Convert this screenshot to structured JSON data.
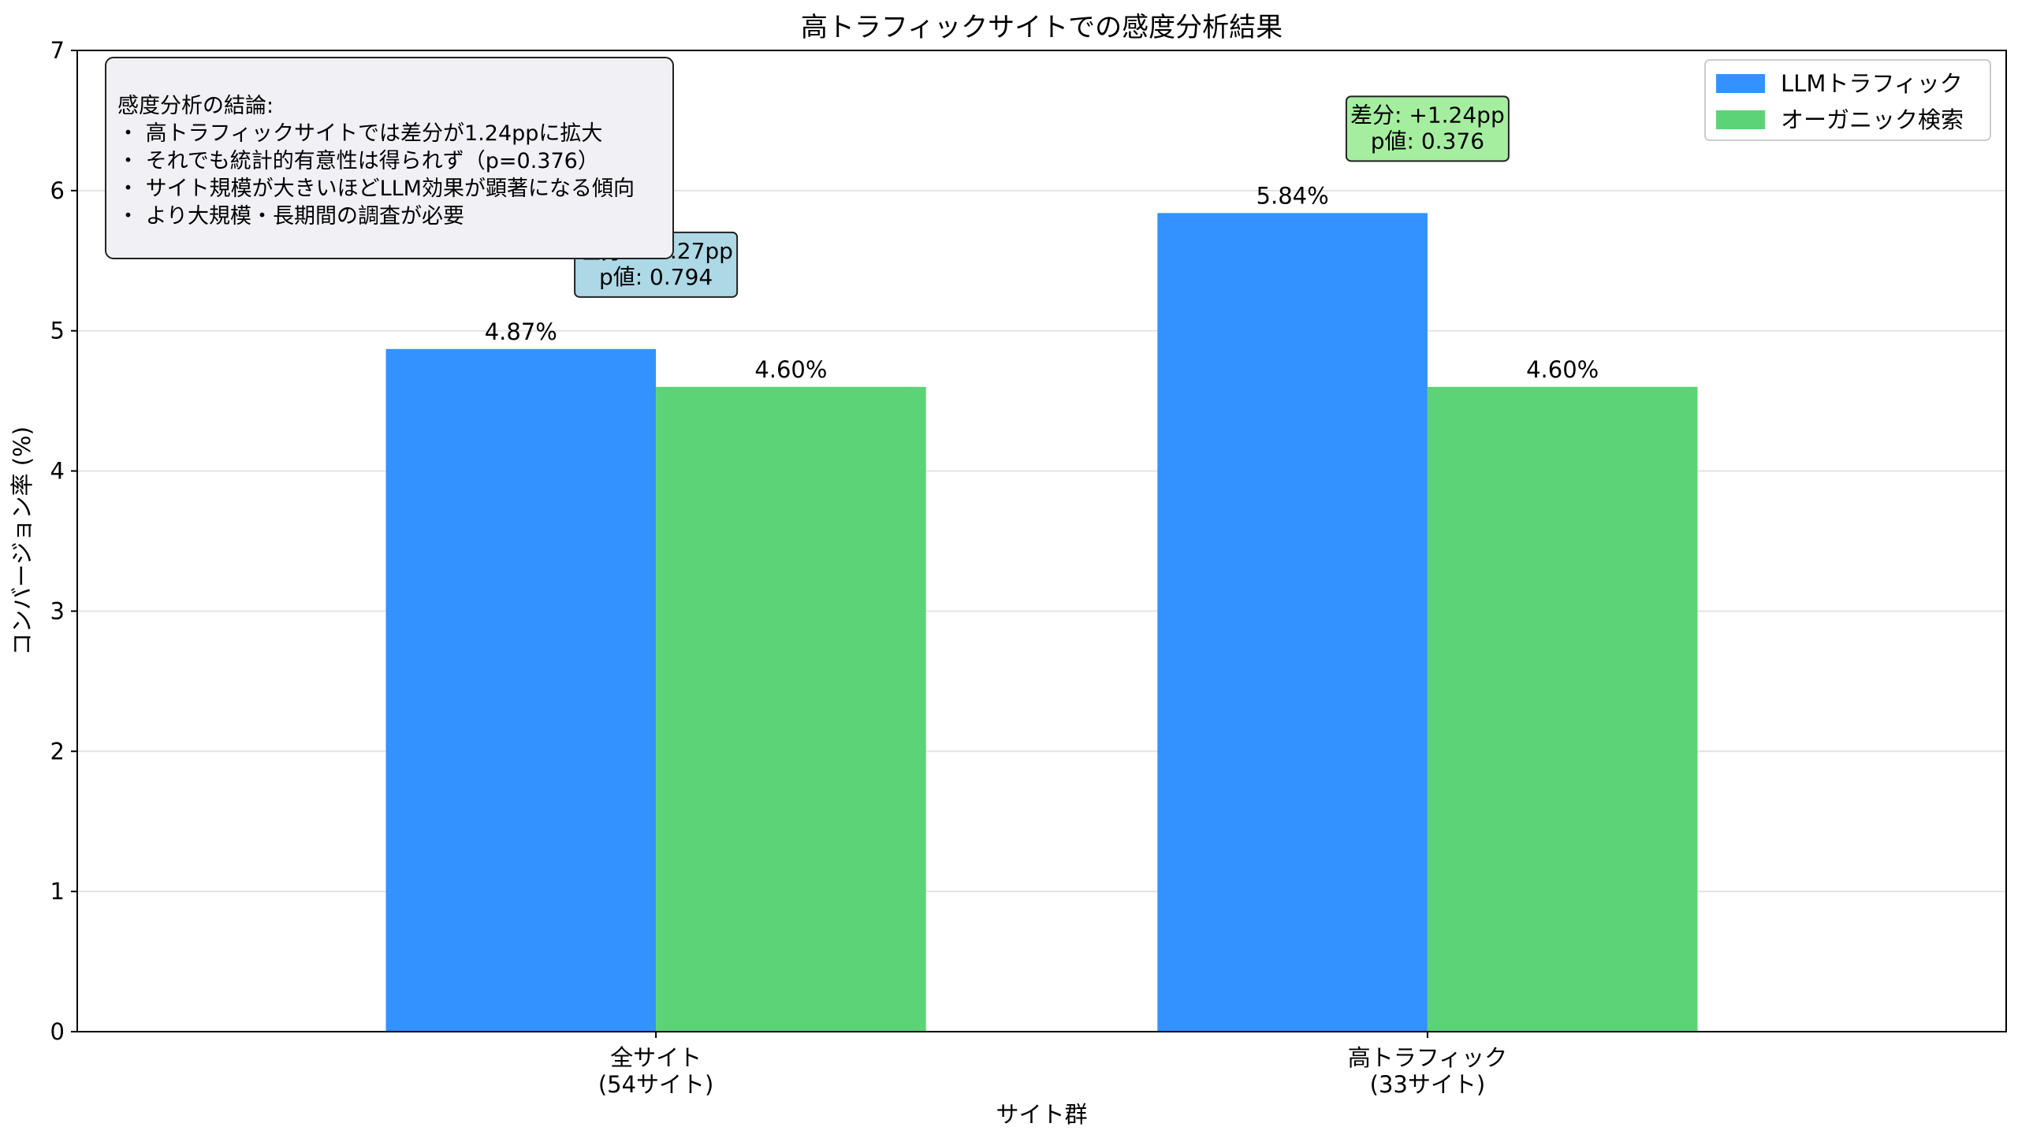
{
  "chart_data": {
    "type": "bar",
    "title": "高トラフィックサイトでの感度分析結果",
    "xlabel": "サイト群",
    "ylabel": "コンバージョン率 (%)",
    "categories": [
      [
        "全サイト",
        "(54サイト)"
      ],
      [
        "高トラフィック",
        "(33サイト)"
      ]
    ],
    "series": [
      {
        "name": "LLMトラフィック",
        "color": "#3392ff",
        "values": [
          4.87,
          5.84
        ],
        "labels": [
          "4.87%",
          "5.84%"
        ]
      },
      {
        "name": "オーガニック検索",
        "color": "#5dd377",
        "values": [
          4.6,
          4.6
        ],
        "labels": [
          "4.60%",
          "4.60%"
        ]
      }
    ],
    "ylim": [
      0,
      7
    ],
    "yticks": [
      0,
      1,
      2,
      3,
      4,
      5,
      6,
      7
    ],
    "grid": "y",
    "legend_position": "top-right",
    "annotations": [
      {
        "lines": [
          "差分: +0.27pp",
          "p値: 0.794"
        ],
        "color": "#add8e6",
        "category": 0
      },
      {
        "lines": [
          "差分: +1.24pp",
          "p値: 0.376"
        ],
        "color": "#a5eea0",
        "category": 1
      }
    ],
    "summary_box": {
      "lines": [
        "感度分析の結論:",
        "・ 高トラフィックサイトでは差分が1.24ppに拡大",
        "・ それでも統計的有意性は得られず（p=0.376）",
        "・ サイト規模が大きいほどLLM効果が顕著になる傾向",
        "・ より大規模・長期間の調査が必要"
      ],
      "color": "#f0f0f5"
    }
  }
}
